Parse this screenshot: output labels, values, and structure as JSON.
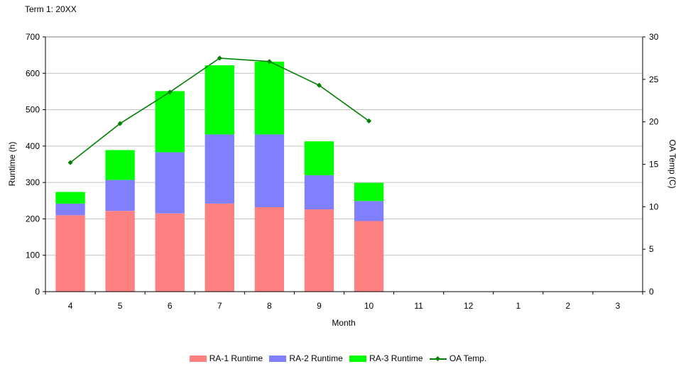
{
  "header": {
    "title": "Term 1: 20XX"
  },
  "chart_data": {
    "type": "bar",
    "stacked": true,
    "categories": [
      "4",
      "5",
      "6",
      "7",
      "8",
      "9",
      "10",
      "11",
      "12",
      "1",
      "2",
      "3"
    ],
    "xlabel": "Month",
    "ylabel": "Runtime (h)",
    "y2label": "OA Temp (C)",
    "ylim": [
      0,
      700
    ],
    "yticks": [
      0,
      100,
      200,
      300,
      400,
      500,
      600,
      700
    ],
    "y2lim": [
      0,
      30
    ],
    "y2ticks": [
      0,
      5,
      10,
      15,
      20,
      25,
      30
    ],
    "grid": true,
    "legend_position": "bottom",
    "series": [
      {
        "name": "RA-1 Runtime",
        "type": "bar",
        "color": "#FF8080",
        "values": [
          210,
          222,
          215,
          242,
          232,
          226,
          194,
          null,
          null,
          null,
          null,
          null
        ]
      },
      {
        "name": "RA-2 Runtime",
        "type": "bar",
        "color": "#8080FF",
        "values": [
          32,
          85,
          168,
          190,
          200,
          94,
          55,
          null,
          null,
          null,
          null,
          null
        ]
      },
      {
        "name": "RA-3 Runtime",
        "type": "bar",
        "color": "#00FF00",
        "values": [
          32,
          82,
          168,
          190,
          200,
          93,
          50,
          null,
          null,
          null,
          null,
          null
        ]
      },
      {
        "name": "OA Temp.",
        "type": "line",
        "axis": "right",
        "color": "#008000",
        "values": [
          15.2,
          19.8,
          23.5,
          27.5,
          27.1,
          24.3,
          20.1,
          null,
          null,
          null,
          null,
          null
        ]
      }
    ]
  }
}
